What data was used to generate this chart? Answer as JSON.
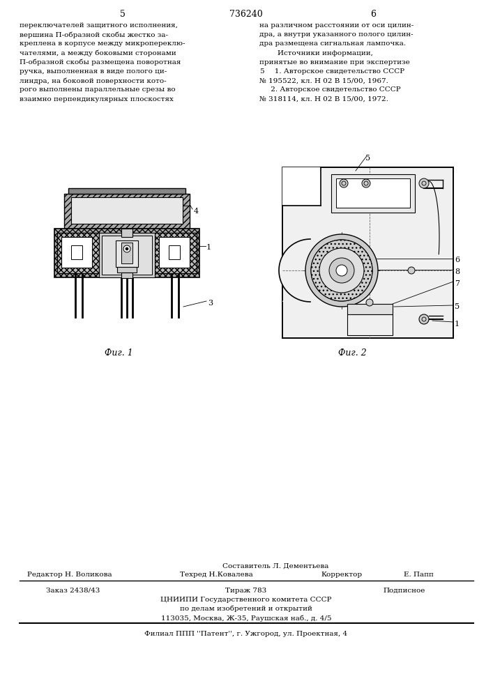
{
  "page_numbers": [
    "5",
    "6"
  ],
  "patent_number": "736240",
  "left_text": [
    "переключателей защитного исполнения,",
    "вершина П-образной скобы жестко за-",
    "креплена в корпусе между микропереклю-",
    "чателями, а между боковыми сторонами",
    "П-образной скобы размещена поворотная",
    "ручка, выполненная в виде полого ци-",
    "линдра, на боковой поверхности кото-",
    "рого выполнены параллельные срезы во",
    "взаимно перпендикулярных плоскостях"
  ],
  "right_text": [
    "на различном расстоянии от оси цилин-",
    "дра, а внутри указанного полого цилин-",
    "дра размещена сигнальная лампочка.",
    "        Источники информации,",
    "принятые во внимание при экспертизе",
    "  5    1. Авторское свидетельство СССР",
    "№ 195522, кл. Н 02 В 15/00, 1967.",
    "     2. Авторское свидетельство СССР",
    "№ 318114, кл. Н 02 В 15/00, 1972."
  ],
  "fig1_label": "Фиг. 1",
  "fig2_label": "Фиг. 2",
  "composer_line": "Составитель Л. Дементьева",
  "editor_line1": "Редактор Н. Воликова",
  "editor_line2": "Техред Н.Ковалева",
  "editor_line3": "Корректор",
  "editor_line4": "Е. Папп",
  "order_text": "Заказ 2438/43",
  "tirazh_text": "Тираж 783",
  "podpisnoe_text": "Подписное",
  "cnipi_line1": "ЦНИИПИ Государственного комитета СССР",
  "cnipi_line2": "по делам изобретений и открытий",
  "cnipi_line3": "113035, Москва, Ж-35, Раушская наб., д. 4/5",
  "filial_line": "Филиал ППП ''Патент'', г. Ужгород, ул. Проектная, 4",
  "bg_color": "#ffffff"
}
